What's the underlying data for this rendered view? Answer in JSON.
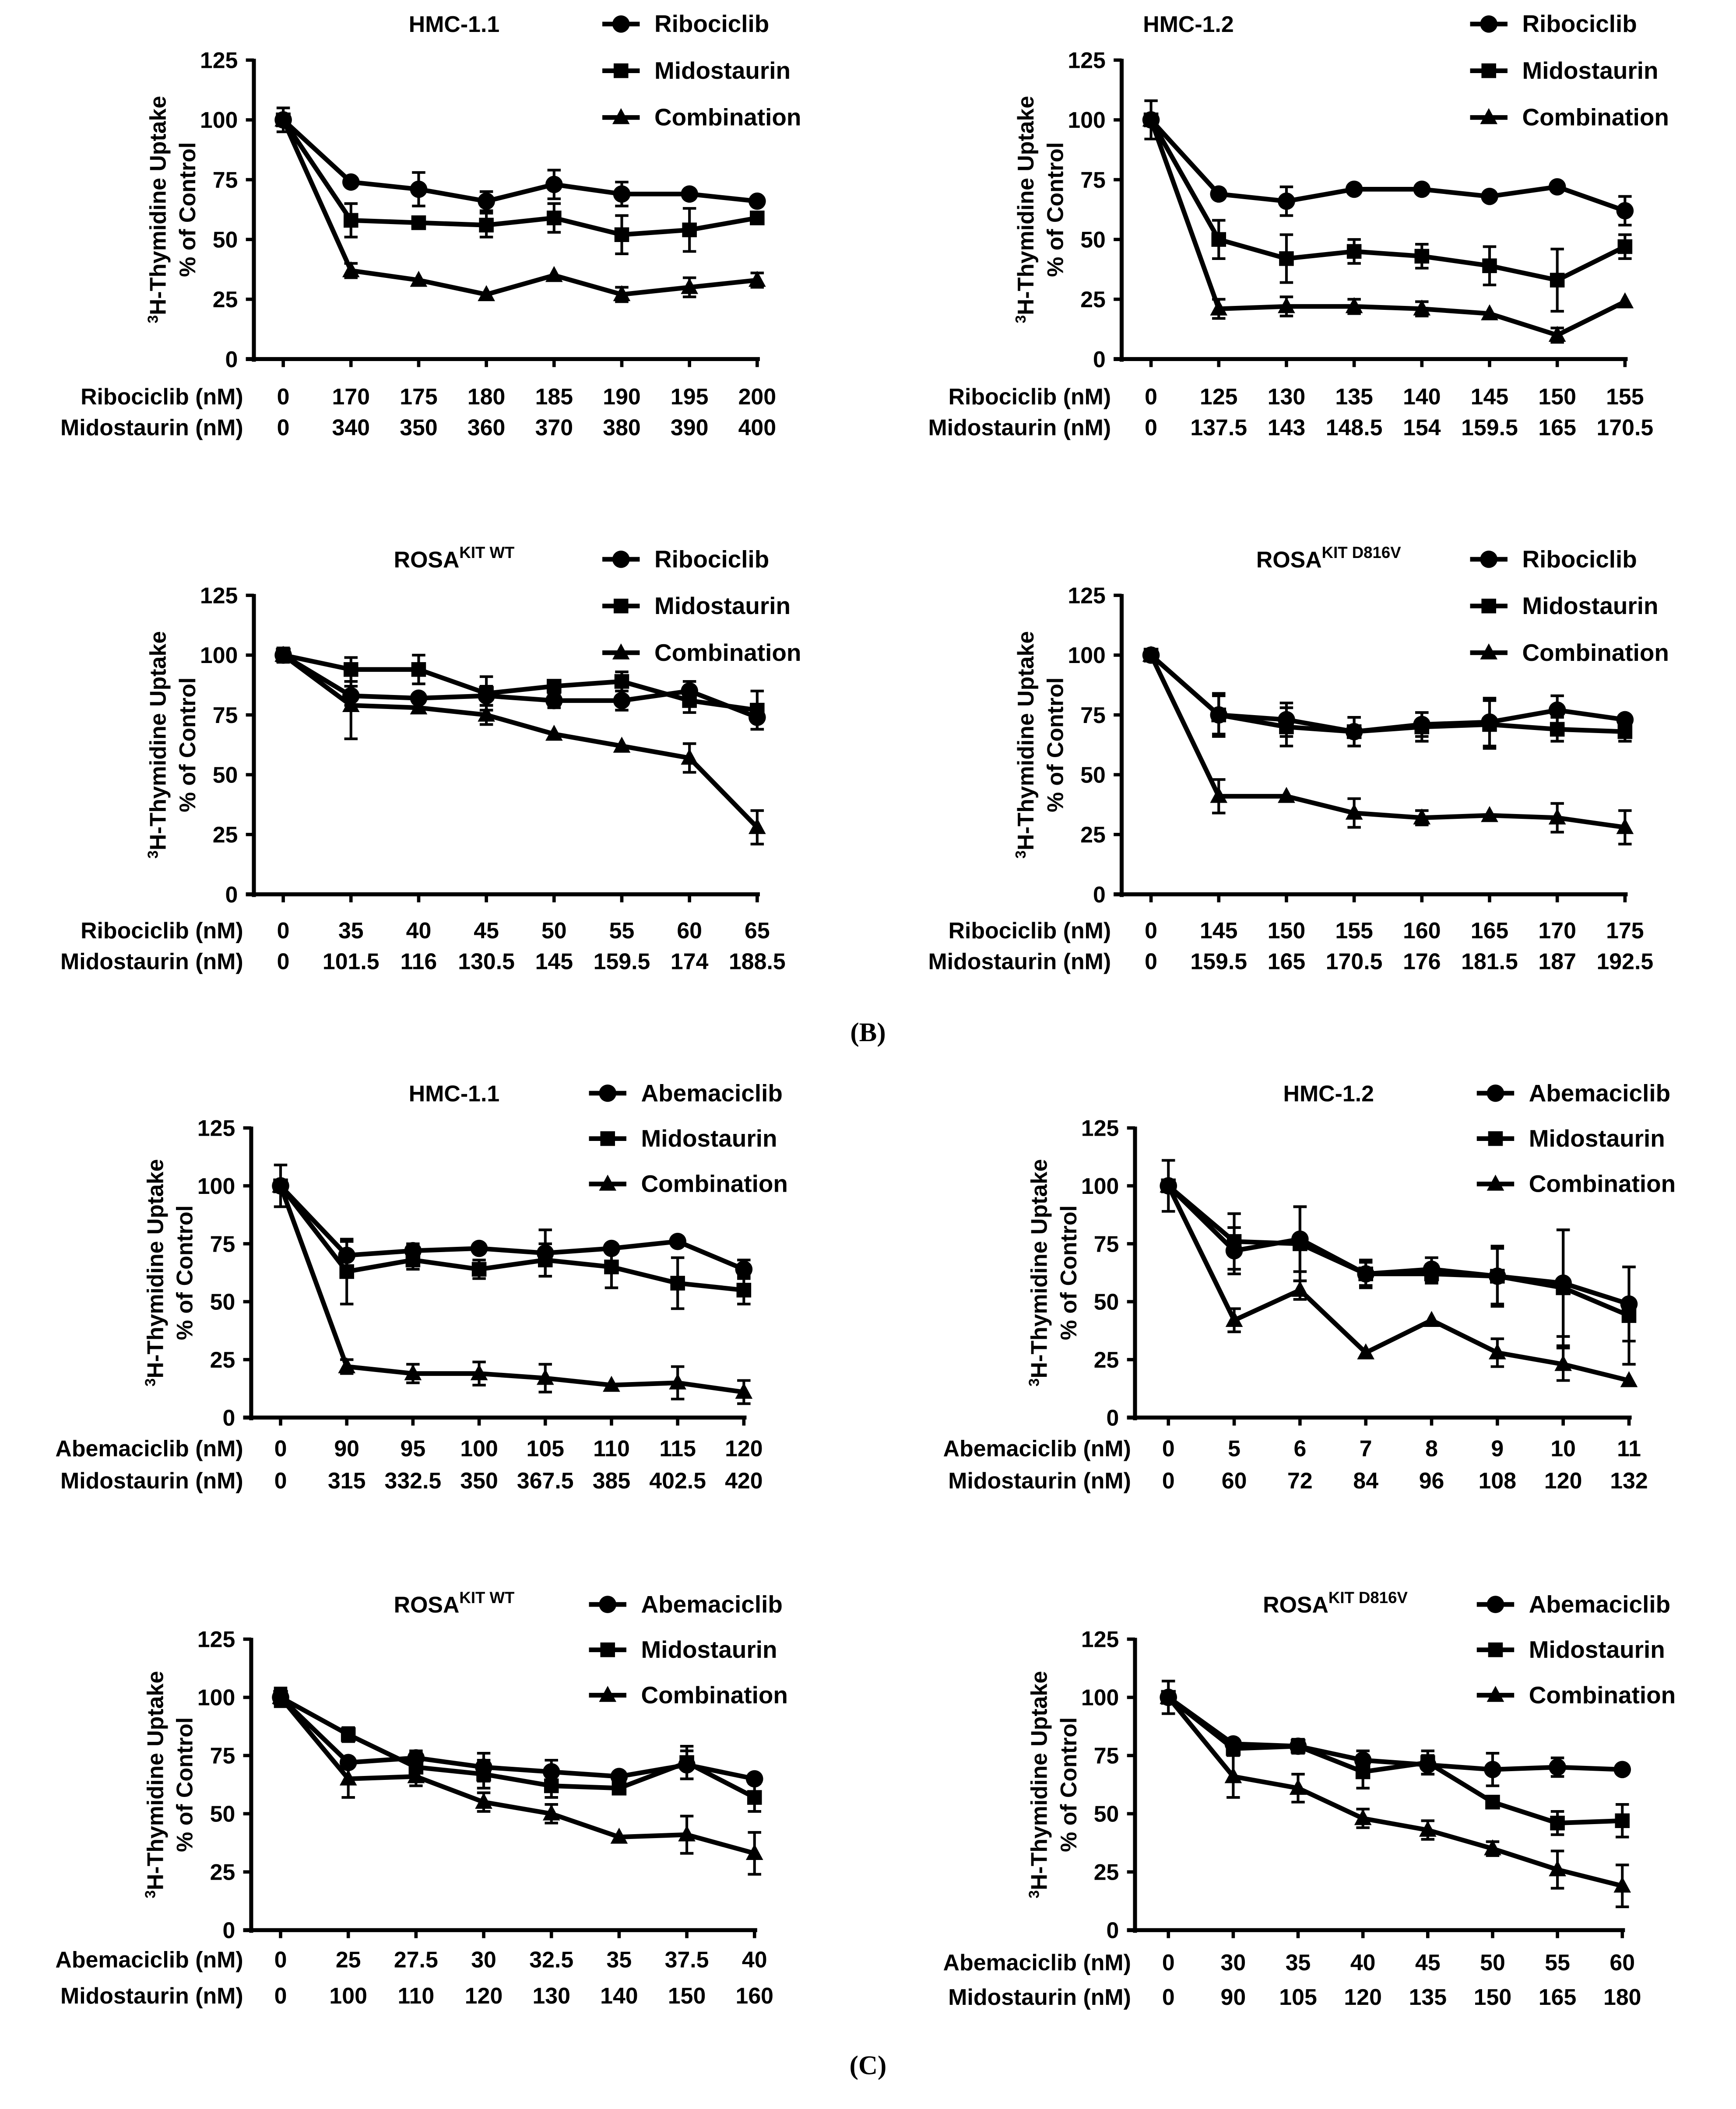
{
  "panel_labels": {
    "b": "(B)",
    "c": "(C)"
  },
  "colors": {
    "ink": "#000000",
    "background": "#ffffff"
  },
  "chart_data": [
    {
      "type": "line",
      "title": "HMC-1.1",
      "title_sup": "",
      "ylabel_sup": "3",
      "ylabel": "H-Thymidine Uptake",
      "ylabel2": "% of Control",
      "ylim": [
        0,
        125
      ],
      "yticks": [
        "0",
        "25",
        "50",
        "75",
        "100",
        "125"
      ],
      "row_labels": [
        "Ribociclib (nM)",
        "Midostaurin (nM)"
      ],
      "x_row1": [
        "0",
        "170",
        "175",
        "180",
        "185",
        "190",
        "195",
        "200"
      ],
      "x_row2": [
        "0",
        "340",
        "350",
        "360",
        "370",
        "380",
        "390",
        "400"
      ],
      "series": [
        {
          "name": "Ribociclib",
          "marker": "circle",
          "values": [
            100,
            74,
            71,
            66,
            73,
            69,
            69,
            66
          ],
          "errors": [
            5,
            0,
            7,
            4,
            6,
            5,
            0,
            0
          ]
        },
        {
          "name": "Midostaurin",
          "marker": "square",
          "values": [
            100,
            58,
            57,
            56,
            59,
            52,
            54,
            59
          ],
          "errors": [
            0,
            7,
            0,
            5,
            6,
            8,
            9,
            0
          ]
        },
        {
          "name": "Combination",
          "marker": "triangle",
          "values": [
            100,
            37,
            33,
            27,
            35,
            27,
            30,
            33
          ],
          "errors": [
            0,
            3,
            0,
            0,
            0,
            3,
            4,
            3
          ]
        }
      ]
    },
    {
      "type": "line",
      "title": "HMC-1.2",
      "title_sup": "",
      "ylabel_sup": "3",
      "ylabel": "H-Thymidine Uptake",
      "ylabel2": "% of Control",
      "ylim": [
        0,
        125
      ],
      "yticks": [
        "0",
        "25",
        "50",
        "75",
        "100",
        "125"
      ],
      "row_labels": [
        "Ribociclib (nM)",
        "Midostaurin (nM)"
      ],
      "x_row1": [
        "0",
        "125",
        "130",
        "135",
        "140",
        "145",
        "150",
        "155"
      ],
      "x_row2": [
        "0",
        "137.5",
        "143",
        "148.5",
        "154",
        "159.5",
        "165",
        "170.5"
      ],
      "series": [
        {
          "name": "Ribociclib",
          "marker": "circle",
          "values": [
            100,
            69,
            66,
            71,
            71,
            68,
            72,
            62
          ],
          "errors": [
            8,
            0,
            6,
            0,
            0,
            0,
            0,
            6
          ]
        },
        {
          "name": "Midostaurin",
          "marker": "square",
          "values": [
            100,
            50,
            42,
            45,
            43,
            39,
            33,
            47
          ],
          "errors": [
            0,
            8,
            10,
            5,
            5,
            8,
            13,
            5
          ]
        },
        {
          "name": "Combination",
          "marker": "triangle",
          "values": [
            100,
            21,
            22,
            22,
            21,
            19,
            10,
            24
          ],
          "errors": [
            0,
            4,
            4,
            3,
            3,
            0,
            3,
            0
          ]
        }
      ]
    },
    {
      "type": "line",
      "title": "ROSA",
      "title_sup": "KIT WT",
      "ylabel_sup": "3",
      "ylabel": "H-Thymidine Uptake",
      "ylabel2": "% of Control",
      "ylim": [
        0,
        125
      ],
      "yticks": [
        "0",
        "25",
        "50",
        "75",
        "100",
        "125"
      ],
      "row_labels": [
        "Ribociclib (nM)",
        "Midostaurin (nM)"
      ],
      "x_row1": [
        "0",
        "35",
        "40",
        "45",
        "50",
        "55",
        "60",
        "65"
      ],
      "x_row2": [
        "0",
        "101.5",
        "116",
        "130.5",
        "145",
        "159.5",
        "174",
        "188.5"
      ],
      "series": [
        {
          "name": "Ribociclib",
          "marker": "circle",
          "values": [
            100,
            83,
            82,
            83,
            81,
            81,
            85,
            74
          ],
          "errors": [
            3,
            4,
            0,
            4,
            3,
            4,
            4,
            5
          ]
        },
        {
          "name": "Midostaurin",
          "marker": "square",
          "values": [
            100,
            94,
            94,
            84,
            87,
            89,
            81,
            77
          ],
          "errors": [
            0,
            5,
            6,
            7,
            0,
            4,
            5,
            8
          ]
        },
        {
          "name": "Combination",
          "marker": "triangle",
          "values": [
            100,
            79,
            78,
            75,
            67,
            62,
            57,
            28
          ],
          "errors": [
            0,
            14,
            0,
            4,
            0,
            0,
            6,
            7
          ]
        }
      ]
    },
    {
      "type": "line",
      "title": "ROSA",
      "title_sup": "KIT D816V",
      "ylabel_sup": "3",
      "ylabel": "H-Thymidine Uptake",
      "ylabel2": "% of Control",
      "ylim": [
        0,
        125
      ],
      "yticks": [
        "0",
        "25",
        "50",
        "75",
        "100",
        "125"
      ],
      "row_labels": [
        "Ribociclib (nM)",
        "Midostaurin (nM)"
      ],
      "x_row1": [
        "0",
        "145",
        "150",
        "155",
        "160",
        "165",
        "170",
        "175"
      ],
      "x_row2": [
        "0",
        "159.5",
        "165",
        "170.5",
        "176",
        "181.5",
        "187",
        "192.5"
      ],
      "series": [
        {
          "name": "Ribociclib",
          "marker": "circle",
          "values": [
            100,
            75,
            73,
            68,
            71,
            72,
            77,
            73
          ],
          "errors": [
            0,
            8,
            7,
            6,
            5,
            10,
            6,
            0
          ]
        },
        {
          "name": "Midostaurin",
          "marker": "square",
          "values": [
            100,
            75,
            70,
            68,
            70,
            71,
            69,
            68
          ],
          "errors": [
            0,
            9,
            8,
            6,
            6,
            10,
            5,
            4
          ]
        },
        {
          "name": "Combination",
          "marker": "triangle",
          "values": [
            100,
            41,
            41,
            34,
            32,
            33,
            32,
            28
          ],
          "errors": [
            0,
            7,
            0,
            6,
            3,
            0,
            6,
            7
          ]
        }
      ]
    },
    {
      "type": "line",
      "title": "HMC-1.1",
      "title_sup": "",
      "ylabel_sup": "3",
      "ylabel": "H-Thymidine Uptake",
      "ylabel2": "% of Control",
      "ylim": [
        0,
        125
      ],
      "yticks": [
        "0",
        "25",
        "50",
        "75",
        "100",
        "125"
      ],
      "row_labels": [
        "Abemaciclib (nM)",
        "Midostaurin (nM)"
      ],
      "x_row1": [
        "0",
        "90",
        "95",
        "100",
        "105",
        "110",
        "115",
        "120"
      ],
      "x_row2": [
        "0",
        "315",
        "332.5",
        "350",
        "367.5",
        "385",
        "402.5",
        "420"
      ],
      "series": [
        {
          "name": "Abemaciclib",
          "marker": "circle",
          "values": [
            100,
            70,
            72,
            73,
            71,
            73,
            76,
            64
          ],
          "errors": [
            9,
            6,
            3,
            0,
            10,
            0,
            0,
            4
          ]
        },
        {
          "name": "Midostaurin",
          "marker": "square",
          "values": [
            100,
            63,
            68,
            64,
            68,
            65,
            58,
            55
          ],
          "errors": [
            0,
            14,
            4,
            4,
            7,
            9,
            11,
            6
          ]
        },
        {
          "name": "Combination",
          "marker": "triangle",
          "values": [
            100,
            22,
            19,
            19,
            17,
            14,
            15,
            11
          ],
          "errors": [
            0,
            3,
            4,
            5,
            6,
            0,
            7,
            5
          ]
        }
      ]
    },
    {
      "type": "line",
      "title": "HMC-1.2",
      "title_sup": "",
      "ylabel_sup": "3",
      "ylabel": "H-Thymidine Uptake",
      "ylabel2": "% of Control",
      "ylim": [
        0,
        125
      ],
      "yticks": [
        "0",
        "25",
        "50",
        "75",
        "100",
        "125"
      ],
      "row_labels": [
        "Abemaciclib (nM)",
        "Midostaurin (nM)"
      ],
      "x_row1": [
        "0",
        "5",
        "6",
        "7",
        "8",
        "9",
        "10",
        "11"
      ],
      "x_row2": [
        "0",
        "60",
        "72",
        "84",
        "96",
        "108",
        "120",
        "132"
      ],
      "series": [
        {
          "name": "Abemaciclib",
          "marker": "circle",
          "values": [
            100,
            72,
            77,
            62,
            64,
            61,
            58,
            49
          ],
          "errors": [
            11,
            10,
            14,
            6,
            5,
            12,
            23,
            16
          ]
        },
        {
          "name": "Midostaurin",
          "marker": "square",
          "values": [
            100,
            76,
            75,
            62,
            62,
            61,
            56,
            44
          ],
          "errors": [
            0,
            12,
            16,
            5,
            4,
            13,
            25,
            21
          ]
        },
        {
          "name": "Combination",
          "marker": "triangle",
          "values": [
            100,
            42,
            55,
            28,
            42,
            28,
            23,
            16
          ],
          "errors": [
            0,
            5,
            4,
            0,
            0,
            6,
            7,
            0
          ]
        }
      ]
    },
    {
      "type": "line",
      "title": "ROSA",
      "title_sup": "KIT WT",
      "ylabel_sup": "3",
      "ylabel": "H-Thymidine Uptake",
      "ylabel2": "% of Control",
      "ylim": [
        0,
        125
      ],
      "yticks": [
        "0",
        "25",
        "50",
        "75",
        "100",
        "125"
      ],
      "row_labels": [
        "Abemaciclib (nM)",
        "Midostaurin (nM)"
      ],
      "x_row1": [
        "0",
        "25",
        "27.5",
        "30",
        "32.5",
        "35",
        "37.5",
        "40"
      ],
      "x_row2": [
        "0",
        "100",
        "110",
        "120",
        "130",
        "140",
        "150",
        "160"
      ],
      "series": [
        {
          "name": "Abemaciclib",
          "marker": "circle",
          "values": [
            100,
            72,
            74,
            70,
            68,
            66,
            71,
            65
          ],
          "errors": [
            3,
            0,
            3,
            6,
            5,
            0,
            6,
            0
          ]
        },
        {
          "name": "Midostaurin",
          "marker": "square",
          "values": [
            100,
            84,
            70,
            67,
            62,
            61,
            72,
            57
          ],
          "errors": [
            0,
            3,
            6,
            6,
            5,
            0,
            7,
            6
          ]
        },
        {
          "name": "Combination",
          "marker": "triangle",
          "values": [
            100,
            65,
            66,
            55,
            50,
            40,
            41,
            33
          ],
          "errors": [
            4,
            8,
            4,
            4,
            4,
            0,
            8,
            9
          ]
        }
      ]
    },
    {
      "type": "line",
      "title": "ROSA",
      "title_sup": "KIT D816V",
      "ylabel_sup": "3",
      "ylabel": "H-Thymidine Uptake",
      "ylabel2": "% of Control",
      "ylim": [
        0,
        125
      ],
      "yticks": [
        "0",
        "25",
        "50",
        "75",
        "100",
        "125"
      ],
      "row_labels": [
        "Abemaciclib (nM)",
        "Midostaurin (nM)"
      ],
      "x_row1": [
        "0",
        "30",
        "35",
        "40",
        "45",
        "50",
        "55",
        "60"
      ],
      "x_row2": [
        "0",
        "90",
        "105",
        "120",
        "135",
        "150",
        "165",
        "180"
      ],
      "series": [
        {
          "name": "Abemaciclib",
          "marker": "circle",
          "values": [
            100,
            80,
            79,
            73,
            71,
            69,
            70,
            69
          ],
          "errors": [
            7,
            0,
            3,
            4,
            4,
            7,
            4,
            0
          ]
        },
        {
          "name": "Midostaurin",
          "marker": "square",
          "values": [
            100,
            78,
            79,
            68,
            72,
            55,
            46,
            47
          ],
          "errors": [
            0,
            0,
            0,
            7,
            5,
            0,
            5,
            7
          ]
        },
        {
          "name": "Combination",
          "marker": "triangle",
          "values": [
            100,
            66,
            61,
            48,
            43,
            35,
            26,
            19
          ],
          "errors": [
            0,
            9,
            6,
            4,
            4,
            3,
            8,
            9
          ]
        }
      ]
    }
  ]
}
